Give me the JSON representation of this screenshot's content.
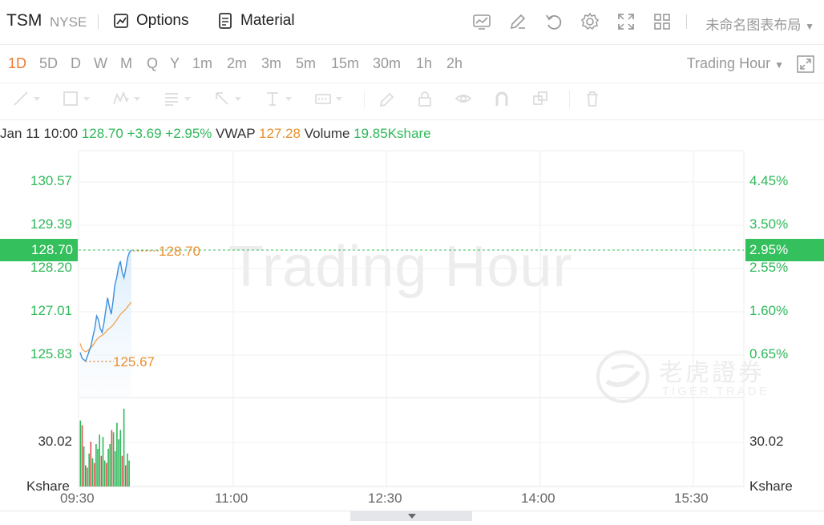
{
  "header": {
    "symbol": "TSM",
    "exchange": "NYSE",
    "options_label": "Options",
    "material_label": "Material",
    "layout_name": "未命名图表布局",
    "icons": [
      "chart-type-icon",
      "draw-icon",
      "undo-icon",
      "settings-icon",
      "fullscreen-icon",
      "layout-grid-icon"
    ]
  },
  "timeframes": [
    "1D",
    "5D",
    "D",
    "W",
    "M",
    "Q",
    "Y",
    "1m",
    "2m",
    "3m",
    "5m",
    "15m",
    "30m",
    "1h",
    "2h"
  ],
  "active_timeframe": "1D",
  "session_selector": "Trading Hour",
  "drawing_tools": [
    "line-tool-icon",
    "rectangle-tool-icon",
    "pattern-tool-icon",
    "fib-tool-icon",
    "arrow-tool-icon",
    "text-tool-icon",
    "measure-tool-icon",
    "brush-tool-icon",
    "lock-icon",
    "eye-icon",
    "magnet-icon",
    "copy-icon",
    "trash-icon"
  ],
  "info": {
    "datetime": "Jan 11 10:00",
    "price": "128.70",
    "change": "+3.69",
    "change_pct": "+2.95%",
    "vwap_label": "VWAP",
    "vwap": "127.28",
    "volume_label": "Volume",
    "volume": "19.85Kshare"
  },
  "current_price_label": "128.70",
  "current_pct_label": "2.95%",
  "last_price_annotation": "128.70",
  "low_price_annotation": "125.67",
  "watermark": {
    "text": "Trading Hour",
    "brand_cn": "老虎證券",
    "brand_en": "TIGER TRADE"
  },
  "colors": {
    "accent": "#ee7b30",
    "up": "#2fb85a",
    "down": "#e24b4b",
    "price_line": "#3b8fde",
    "vwap_line": "#f0a050"
  },
  "chart_data": {
    "type": "line",
    "price_ticks": [
      "130.57",
      "129.39",
      "128.20",
      "127.01",
      "125.83"
    ],
    "pct_ticks": [
      "4.45%",
      "3.50%",
      "2.55%",
      "1.60%",
      "0.65%"
    ],
    "volume_tick": "30.02",
    "volume_unit": "Kshare",
    "x_ticks": [
      "09:30",
      "11:00",
      "12:30",
      "14:00",
      "15:30"
    ],
    "price_range": [
      125.0,
      131.2
    ],
    "price": [
      125.9,
      125.75,
      125.7,
      125.67,
      125.8,
      125.95,
      126.1,
      126.35,
      126.55,
      126.9,
      126.8,
      126.55,
      126.45,
      126.7,
      127.05,
      127.4,
      127.15,
      126.95,
      127.3,
      127.75,
      127.95,
      128.25,
      128.4,
      128.1,
      127.95,
      128.2,
      128.5,
      128.65,
      128.7
    ],
    "vwap": [
      126.15,
      126.0,
      125.95,
      125.92,
      125.95,
      125.99,
      126.04,
      126.1,
      126.17,
      126.25,
      126.3,
      126.34,
      126.37,
      126.41,
      126.46,
      126.52,
      126.56,
      126.6,
      126.65,
      126.72,
      126.79,
      126.87,
      126.94,
      126.99,
      127.04,
      127.09,
      127.16,
      127.22,
      127.28
    ],
    "volume": [
      [
        28,
        "up"
      ],
      [
        26,
        "down"
      ],
      [
        17,
        "up"
      ],
      [
        9,
        "down"
      ],
      [
        8,
        "up"
      ],
      [
        14,
        "up"
      ],
      [
        19,
        "down"
      ],
      [
        12,
        "up"
      ],
      [
        10,
        "down"
      ],
      [
        18,
        "up"
      ],
      [
        16,
        "up"
      ],
      [
        22,
        "up"
      ],
      [
        13,
        "down"
      ],
      [
        21,
        "up"
      ],
      [
        11,
        "up"
      ],
      [
        10,
        "down"
      ],
      [
        16,
        "up"
      ],
      [
        18,
        "up"
      ],
      [
        24,
        "down"
      ],
      [
        23,
        "up"
      ],
      [
        15,
        "up"
      ],
      [
        27,
        "up"
      ],
      [
        20,
        "up"
      ],
      [
        24,
        "up"
      ],
      [
        13,
        "down"
      ],
      [
        33,
        "up"
      ],
      [
        9,
        "down"
      ],
      [
        14,
        "up"
      ],
      [
        11,
        "up"
      ]
    ]
  }
}
